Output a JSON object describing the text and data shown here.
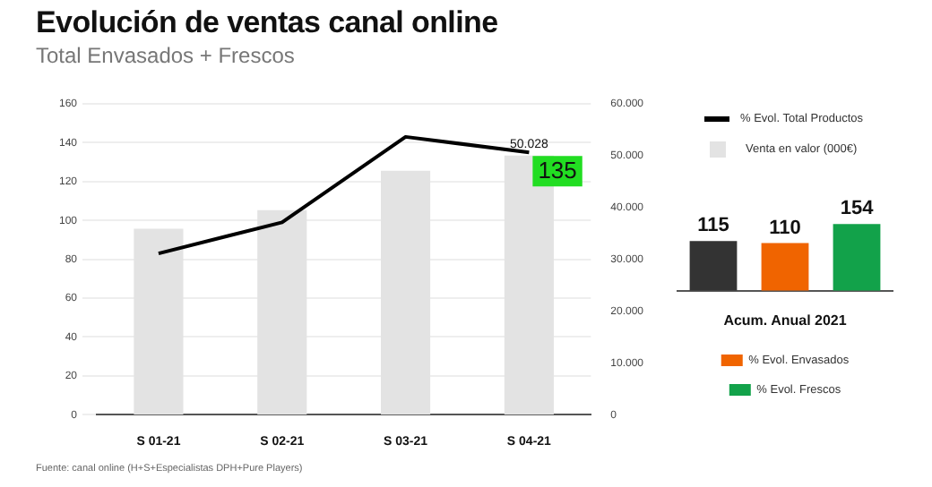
{
  "chart_data": [
    {
      "type": "bar",
      "title": "Evolución de ventas canal online",
      "subtitle": "Total Envasados + Frescos",
      "categories": [
        "S 01-21",
        "S 02-21",
        "S 03-21",
        "S 04-21"
      ],
      "series": [
        {
          "name": "% Evol. Total Productos",
          "type": "line",
          "color": "#000000",
          "values": [
            83,
            99,
            143,
            135
          ],
          "value_labels": [
            null,
            null,
            null,
            "135"
          ]
        },
        {
          "name": "Venta en valor (000€)",
          "type": "bar",
          "axis": "y2",
          "color": "#e3e3e3",
          "values": [
            35900,
            39500,
            47100,
            50028
          ],
          "value_labels": [
            null,
            null,
            null,
            "50.028"
          ]
        }
      ],
      "ylim": [
        0,
        160
      ],
      "yticks": [
        0,
        20,
        40,
        60,
        80,
        100,
        120,
        140,
        160
      ],
      "y2lim": [
        0,
        60000
      ],
      "y2ticks": [
        0,
        {
          "value": 10000,
          "label": "10.000"
        },
        {
          "value": 20000,
          "label": "20.000"
        },
        {
          "value": 30000,
          "label": "30.000"
        },
        {
          "value": 40000,
          "label": "40.000"
        },
        {
          "value": 50000,
          "label": "50.000"
        },
        {
          "value": 60000,
          "label": "60.000"
        }
      ],
      "grid": "y",
      "legend": "top right",
      "marker": "none",
      "annotations": [
        "Fuente: canal online (H+S+Especialistas DPH+Pure Players)"
      ]
    },
    {
      "type": "bar",
      "xlabel": "Acum. Anual 2021",
      "categories": [
        null,
        null,
        null
      ],
      "series": [
        {
          "color": "#333333",
          "values": [
            115,
            null,
            null
          ]
        },
        {
          "name": "% Evol. Envasados",
          "color": "#f06400",
          "values": [
            null,
            110,
            null
          ]
        },
        {
          "name": "% Evol. Frescos",
          "color": "#12a24a",
          "values": [
            null,
            null,
            154
          ]
        }
      ],
      "data_labels": true,
      "legend": "bottom",
      "stacked": true
    }
  ]
}
